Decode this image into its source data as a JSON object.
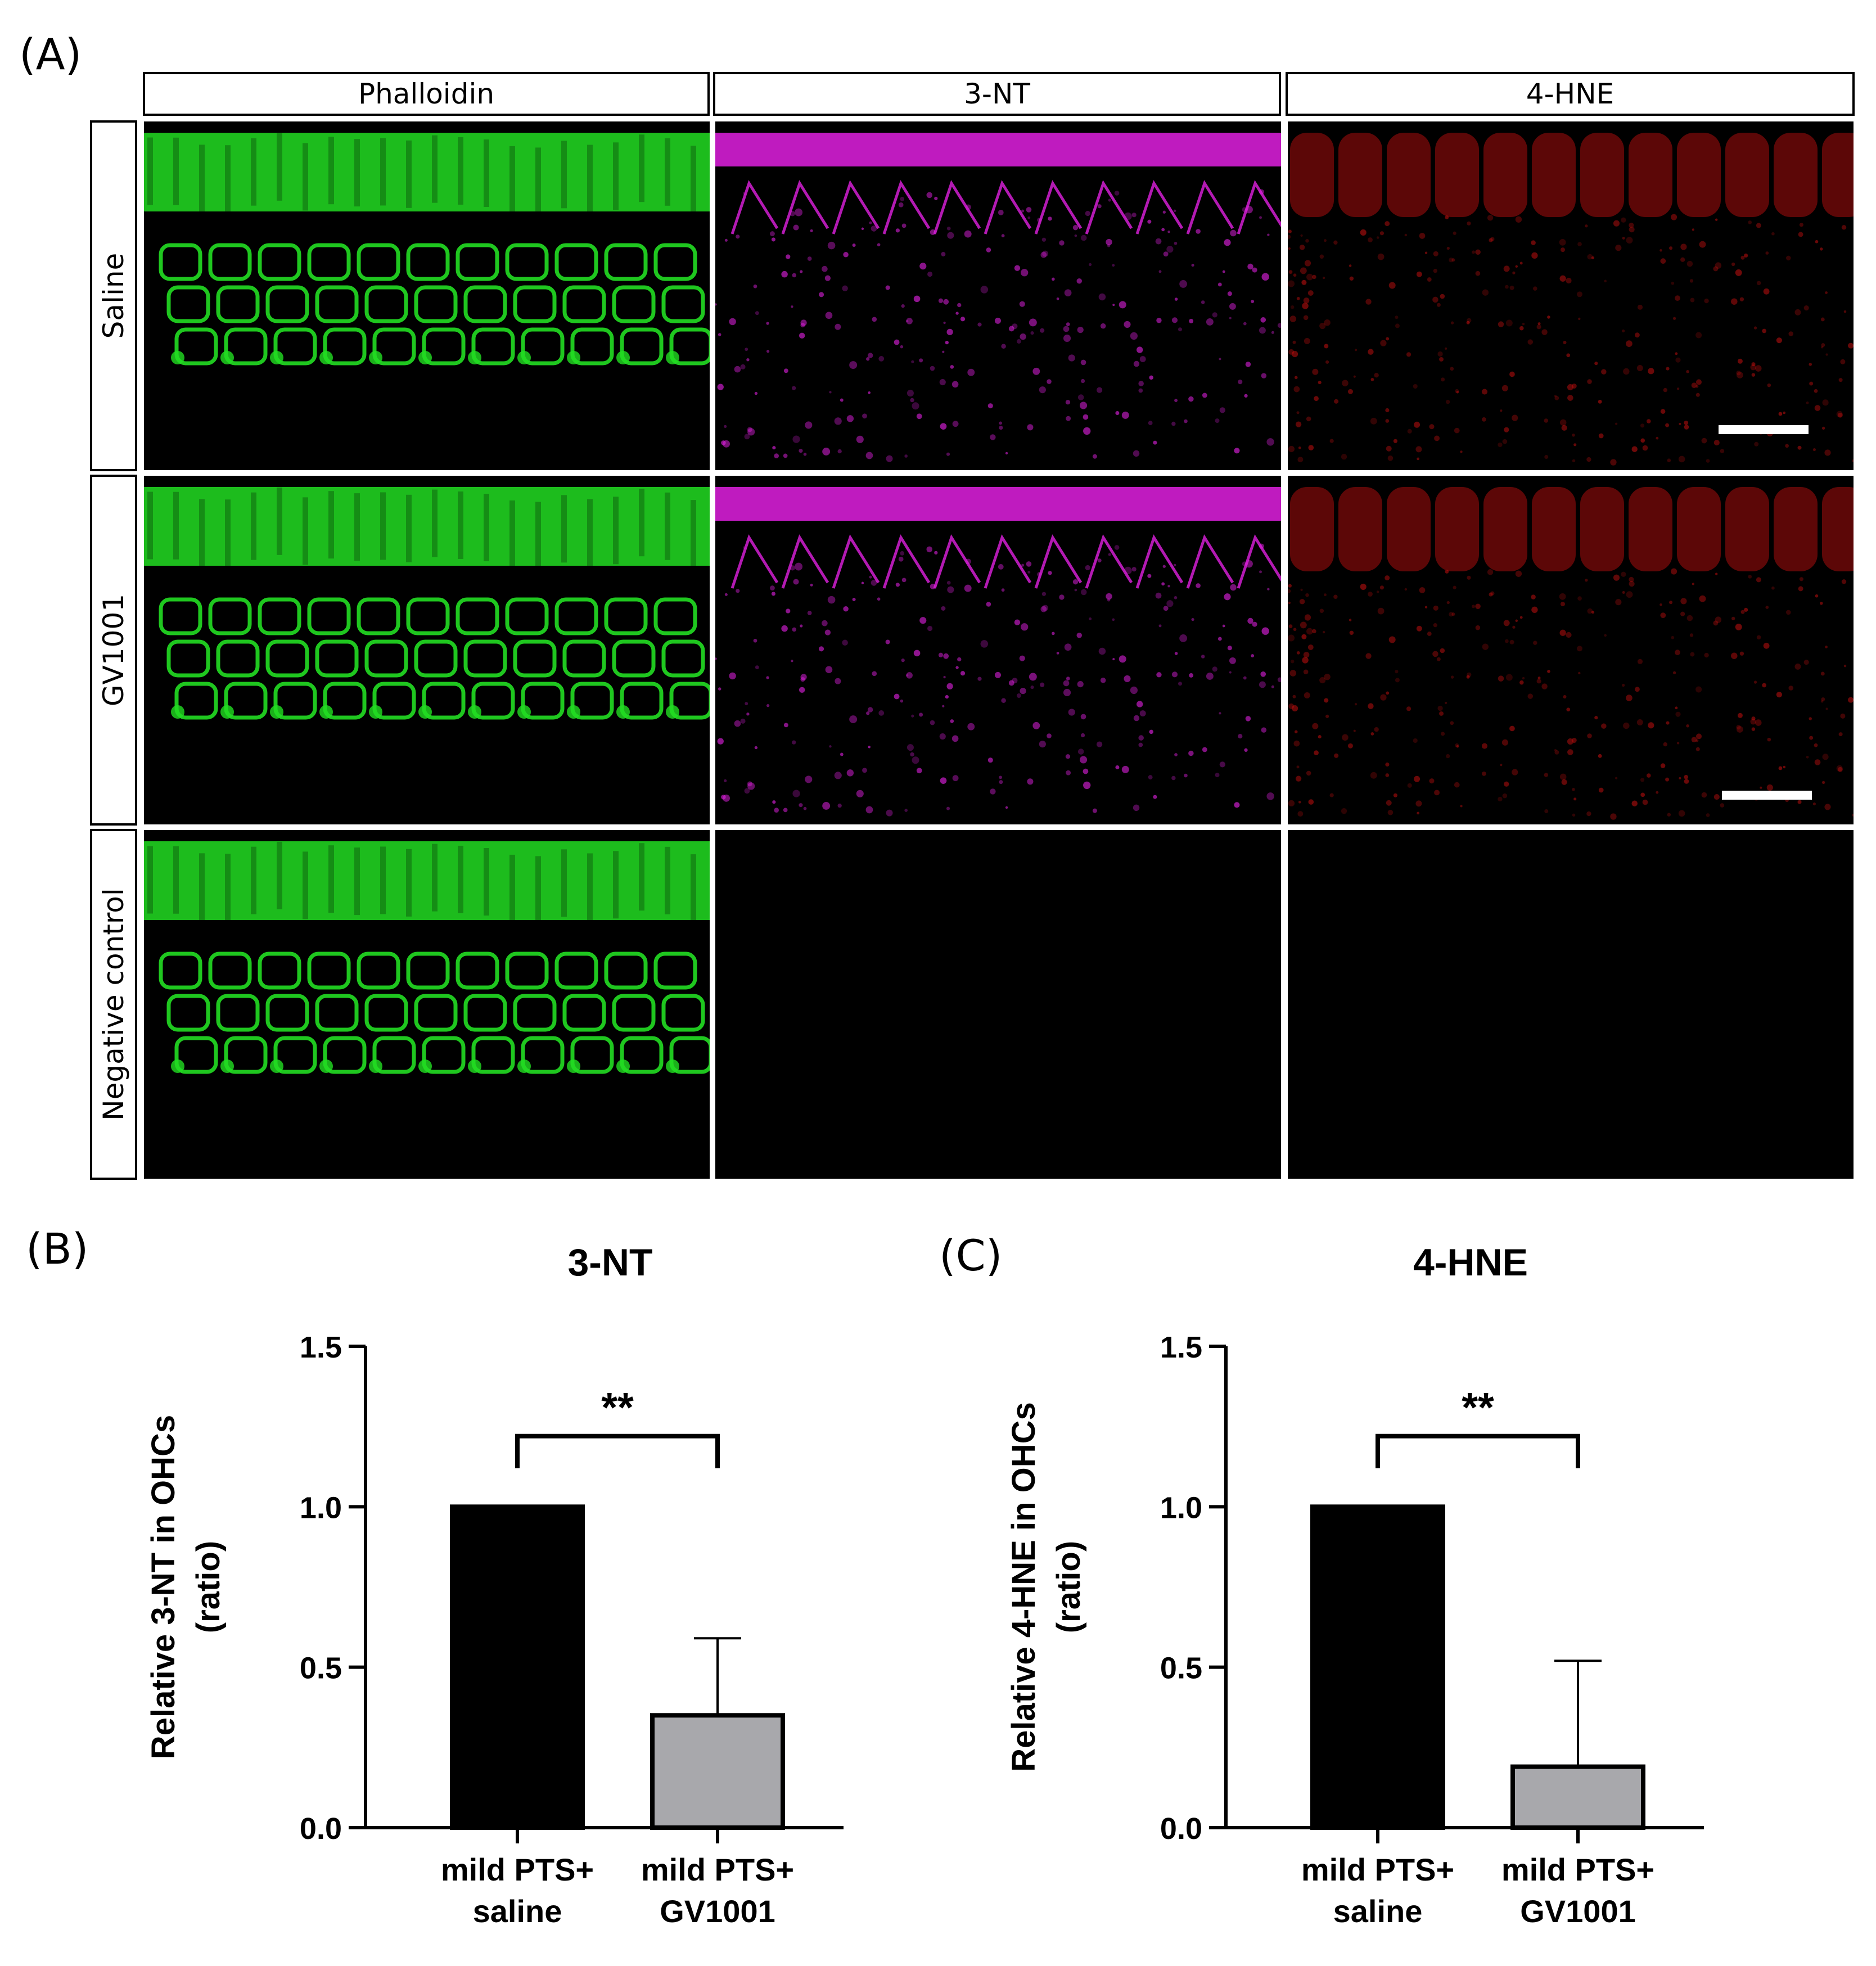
{
  "panel_labels": {
    "a": "(A)",
    "b": "(B)",
    "c": "(C)"
  },
  "columns": [
    "Phalloidin",
    "3-NT",
    "4-HNE"
  ],
  "rows": [
    "Saline",
    "GV1001",
    "Negative control"
  ],
  "image_colors": {
    "phalloidin": "#22dd22",
    "nt3": "#e020e0",
    "hne4": "#cc1010"
  },
  "chart_data": [
    {
      "type": "bar",
      "title": "3-NT",
      "ylabel_line1": "Relative 3-NT in OHCs",
      "ylabel_line2": "(ratio)",
      "categories": [
        [
          "mild PTS+",
          "saline"
        ],
        [
          "mild PTS+",
          "GV1001"
        ]
      ],
      "values": [
        1.0,
        0.35
      ],
      "error_upper": [
        0,
        0.24
      ],
      "bar_colors": [
        "#000000",
        "#a8a8ac"
      ],
      "ylim": [
        0,
        1.5
      ],
      "yticks": [
        "0.0",
        "0.5",
        "1.0",
        "1.5"
      ],
      "significance": "**",
      "grid": false
    },
    {
      "type": "bar",
      "title": "4-HNE",
      "ylabel_line1": "Relative 4-HNE in OHCs",
      "ylabel_line2": "(ratio)",
      "categories": [
        [
          "mild PTS+",
          "saline"
        ],
        [
          "mild PTS+",
          "GV1001"
        ]
      ],
      "values": [
        1.0,
        0.19
      ],
      "error_upper": [
        0,
        0.33
      ],
      "bar_colors": [
        "#000000",
        "#a8a8ac"
      ],
      "ylim": [
        0,
        1.5
      ],
      "yticks": [
        "0.0",
        "0.5",
        "1.0",
        "1.5"
      ],
      "significance": "**",
      "grid": false
    }
  ]
}
